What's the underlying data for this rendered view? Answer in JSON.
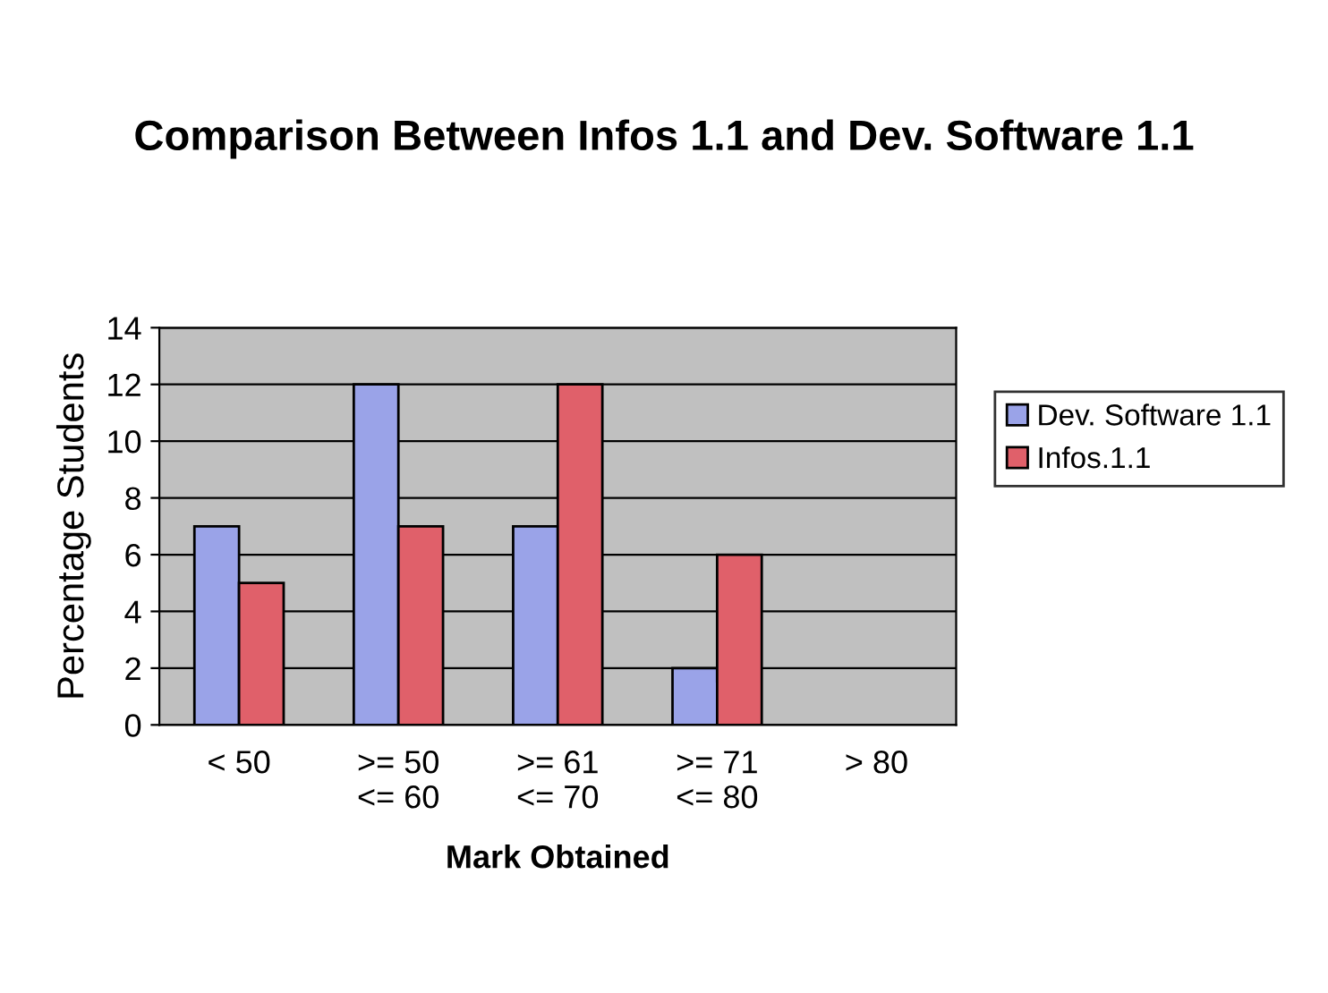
{
  "chart_data": {
    "type": "bar",
    "title": "Comparison Between Infos 1.1 and Dev. Software 1.1",
    "xlabel": "Mark Obtained",
    "ylabel": "Percentage Students",
    "categories": [
      "< 50",
      ">= 50\n<= 60",
      ">= 61\n<= 70",
      ">= 71\n<= 80",
      "> 80"
    ],
    "series": [
      {
        "name": "Dev. Software 1.1",
        "color": "#9aa3e8",
        "values": [
          7,
          12,
          7,
          2,
          null
        ]
      },
      {
        "name": "Infos.1.1",
        "color": "#e0606a",
        "values": [
          5,
          7,
          12,
          6,
          null
        ]
      }
    ],
    "ylim": [
      0,
      14
    ],
    "yticks": [
      0,
      2,
      4,
      6,
      8,
      10,
      12,
      14
    ],
    "grid": "y",
    "legend": "right"
  }
}
